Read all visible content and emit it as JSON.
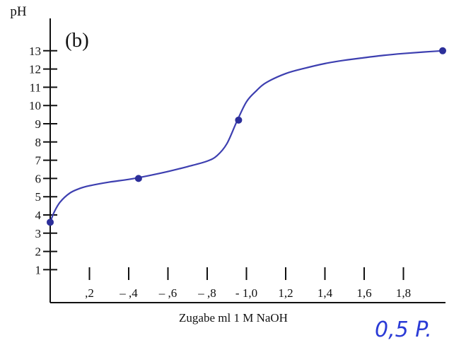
{
  "colors": {
    "axis": "#111111",
    "curve": "#3d3fb0",
    "points": "#2c2f9a",
    "handwriting": "#2b3bd6"
  },
  "chart_data": {
    "type": "line",
    "panel_label": "(b)",
    "ylabel": "pH",
    "xlabel": "Zugabe ml 1 M NaOH",
    "xlim": [
      0,
      2.0
    ],
    "ylim": [
      0,
      13.8
    ],
    "y_ticks": [
      1,
      2,
      3,
      4,
      5,
      6,
      7,
      8,
      9,
      10,
      11,
      12,
      13
    ],
    "y_tick_labels": [
      "1",
      "2",
      "3",
      "4",
      "5",
      "6",
      "7",
      "8",
      "9",
      "10",
      "11",
      "12",
      "13"
    ],
    "x_ticks": [
      0.2,
      0.4,
      0.6,
      0.8,
      1.0,
      1.2,
      1.4,
      1.6,
      1.8
    ],
    "x_tick_labels": [
      ",2",
      "– ,4",
      "– ,6",
      "– ,8",
      "- 1,0",
      "1,2",
      "1,4",
      "1,6",
      "1,8"
    ],
    "grid": false,
    "series": [
      {
        "curve": [
          [
            0.0,
            3.6
          ],
          [
            0.02,
            4.15
          ],
          [
            0.05,
            4.7
          ],
          [
            0.1,
            5.2
          ],
          [
            0.15,
            5.45
          ],
          [
            0.2,
            5.6
          ],
          [
            0.3,
            5.8
          ],
          [
            0.4,
            5.95
          ],
          [
            0.5,
            6.15
          ],
          [
            0.6,
            6.38
          ],
          [
            0.7,
            6.65
          ],
          [
            0.8,
            6.95
          ],
          [
            0.85,
            7.25
          ],
          [
            0.9,
            7.9
          ],
          [
            0.95,
            9.1
          ],
          [
            1.0,
            10.2
          ],
          [
            1.05,
            10.8
          ],
          [
            1.1,
            11.25
          ],
          [
            1.2,
            11.75
          ],
          [
            1.3,
            12.05
          ],
          [
            1.4,
            12.3
          ],
          [
            1.5,
            12.48
          ],
          [
            1.6,
            12.62
          ],
          [
            1.7,
            12.75
          ],
          [
            1.8,
            12.85
          ],
          [
            1.9,
            12.93
          ],
          [
            2.0,
            13.0
          ]
        ],
        "marked_points": [
          [
            0.0,
            3.6
          ],
          [
            0.45,
            6.0
          ],
          [
            0.96,
            9.2
          ],
          [
            2.0,
            13.0
          ]
        ]
      }
    ]
  },
  "annotation": {
    "handwritten_note": "0,5 P."
  }
}
